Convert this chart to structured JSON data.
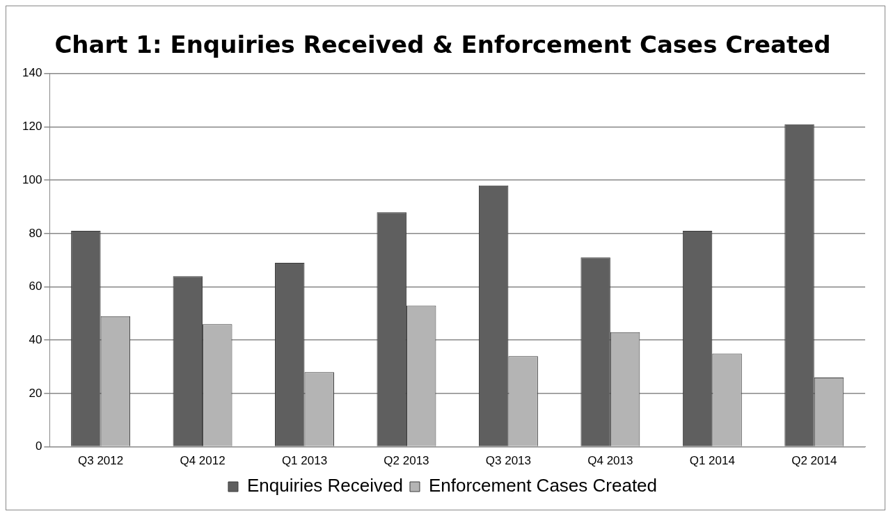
{
  "chart_data": {
    "type": "bar",
    "title": "Chart 1: Enquiries Received & Enforcement Cases Created",
    "categories": [
      "Q3 2012",
      "Q4 2012",
      "Q1 2013",
      "Q2 2013",
      "Q3 2013",
      "Q4 2013",
      "Q1 2014",
      "Q2 2014"
    ],
    "series": [
      {
        "name": "Enquiries Received",
        "color": "#5f5f5f",
        "values": [
          81,
          64,
          69,
          88,
          98,
          71,
          81,
          121
        ]
      },
      {
        "name": "Enforcement Cases Created",
        "color": "#b4b4b4",
        "values": [
          49,
          46,
          28,
          53,
          34,
          43,
          35,
          26
        ]
      }
    ],
    "ylim": [
      0,
      140
    ],
    "yticks": [
      0,
      20,
      40,
      60,
      80,
      100,
      120,
      140
    ],
    "grid": "y",
    "legend": "bottom"
  }
}
